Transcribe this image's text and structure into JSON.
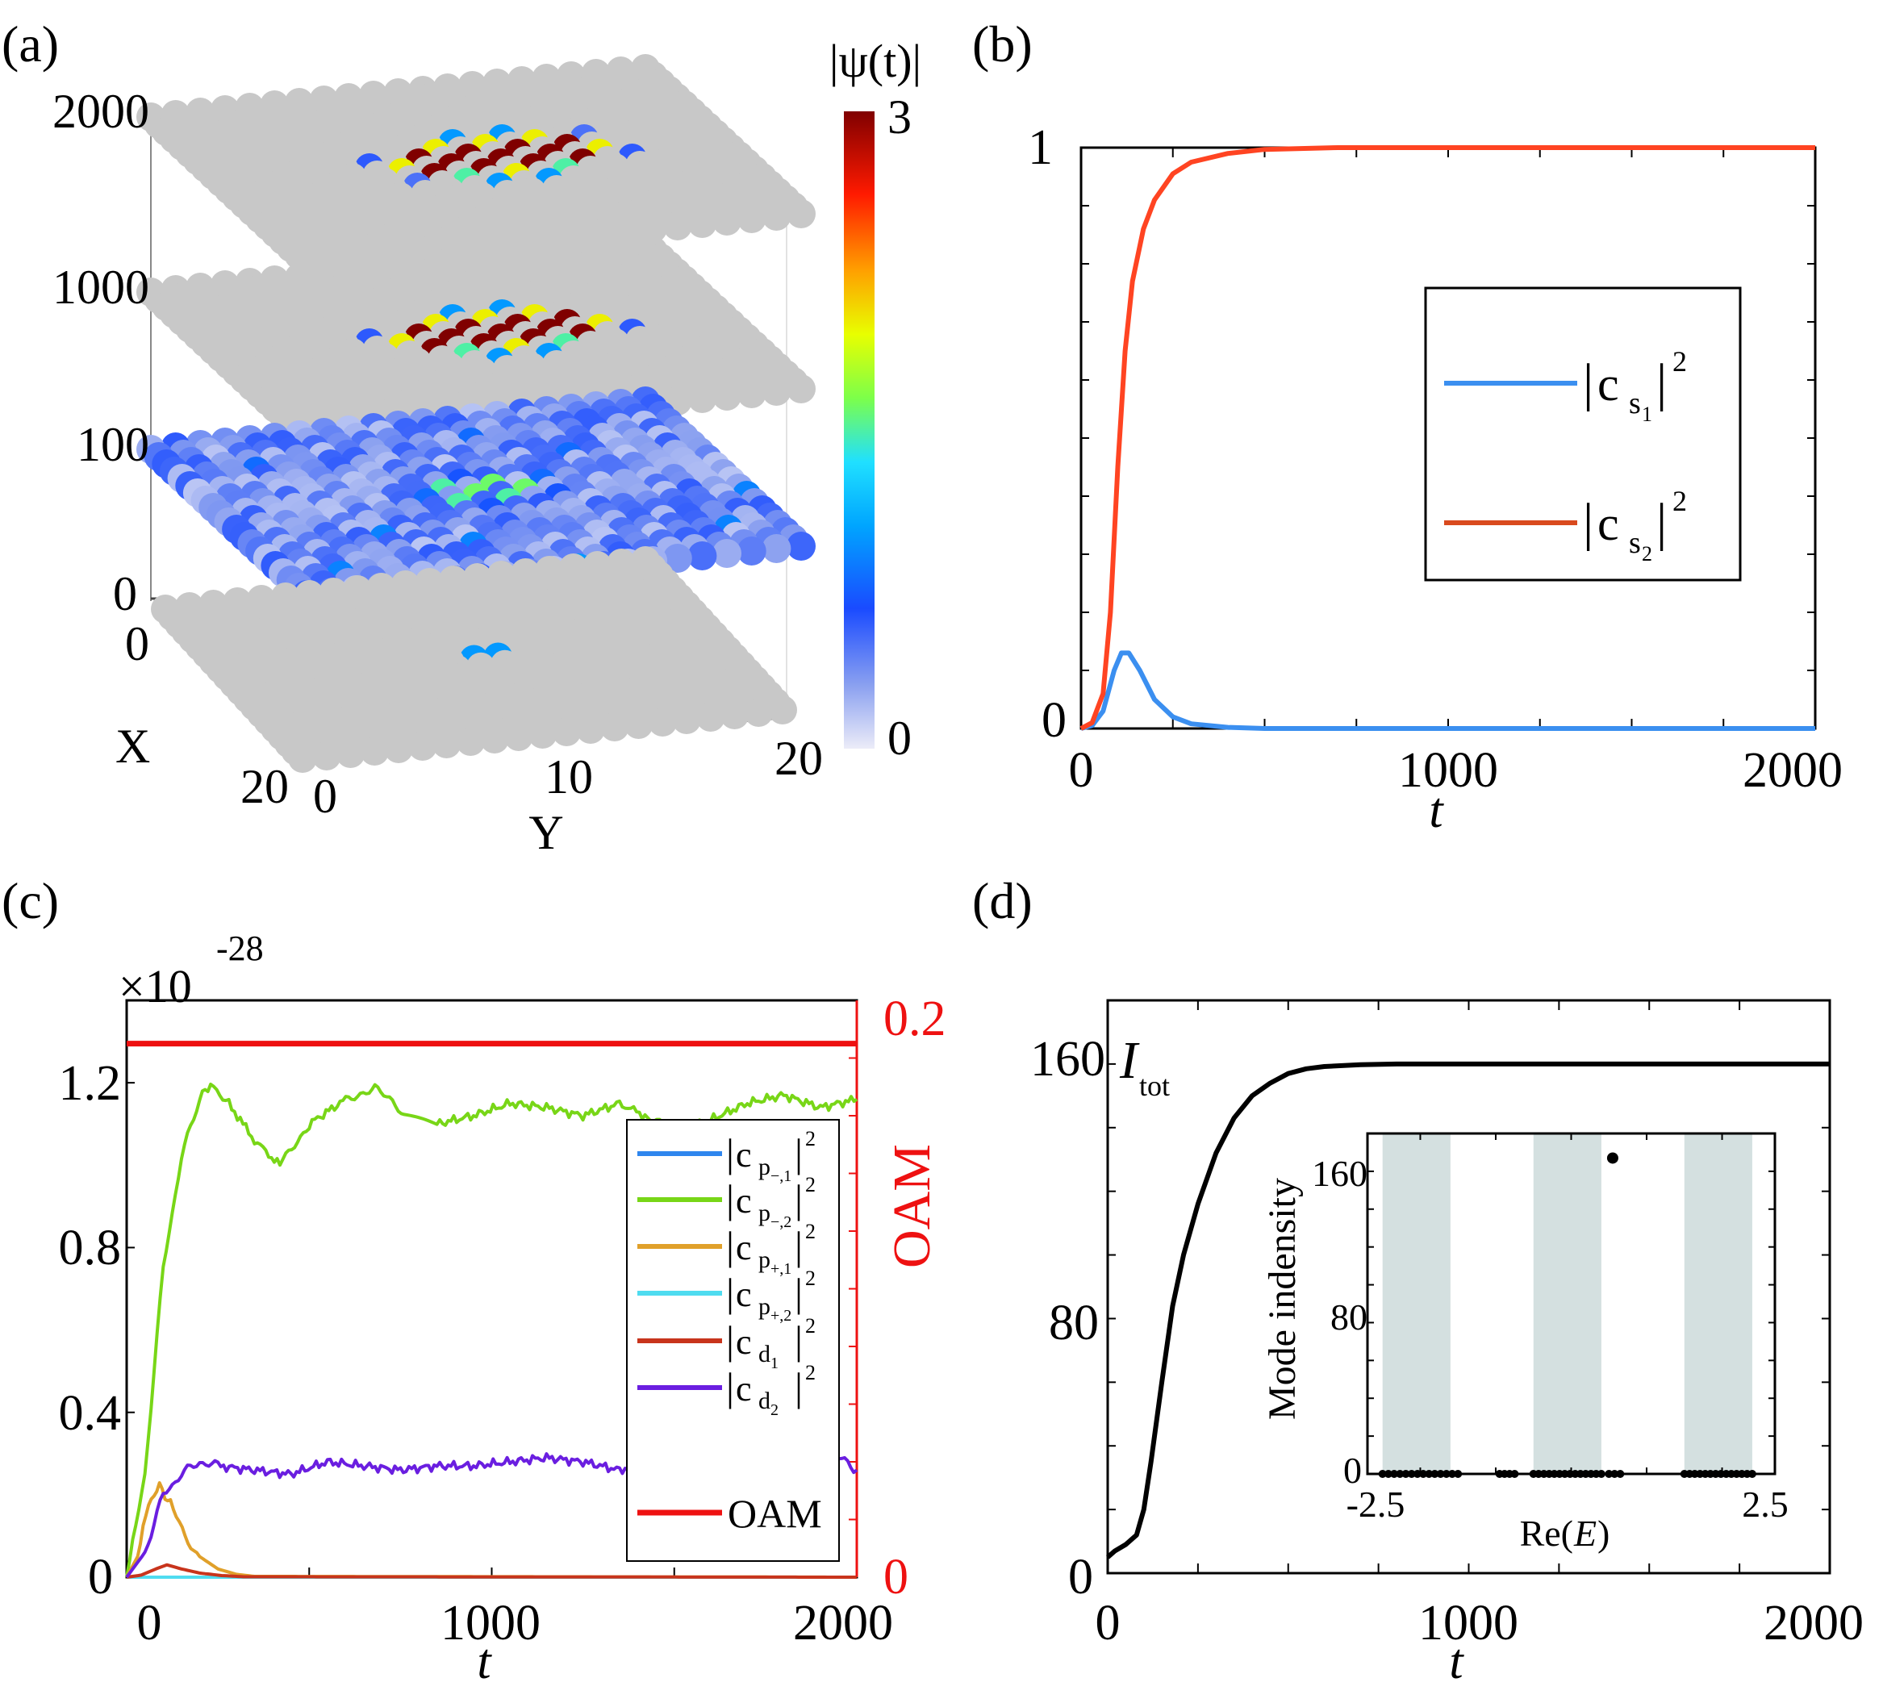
{
  "panels": {
    "a": {
      "label": "(a)"
    },
    "b": {
      "label": "(b)"
    },
    "c": {
      "label": "(c)"
    },
    "d": {
      "label": "(d)"
    }
  },
  "chart_data": [
    {
      "id": "a",
      "type": "other",
      "title": "",
      "layer_ticks": [
        "2000",
        "1000",
        "100",
        "0"
      ],
      "xlabel": "X",
      "ylabel": "Y",
      "x_ticks": [
        "0",
        "20"
      ],
      "y_ticks": [
        "0",
        "10",
        "20"
      ],
      "colorbar": {
        "label": "|ψ(t)|",
        "max": "3",
        "min": "0",
        "colormap": "jet"
      },
      "lattice": {
        "rows": 21,
        "cols": 21,
        "background_color": "#c8c8c8"
      },
      "layers": [
        {
          "t": 2000,
          "excited": [
            [
              8,
              9,
              2
            ],
            [
              8,
              11,
              2
            ],
            [
              8,
              13,
              2
            ],
            [
              9,
              8,
              3
            ],
            [
              9,
              10,
              3
            ],
            [
              9,
              12,
              3
            ],
            [
              9,
              14,
              3
            ],
            [
              10,
              7,
              2
            ],
            [
              10,
              9,
              3
            ],
            [
              10,
              11,
              3
            ],
            [
              10,
              13,
              3
            ],
            [
              10,
              15,
              2
            ],
            [
              11,
              8,
              3
            ],
            [
              11,
              10,
              3
            ],
            [
              11,
              12,
              3
            ],
            [
              11,
              14,
              3
            ],
            [
              12,
              9,
              1.5
            ],
            [
              12,
              11,
              2
            ],
            [
              12,
              13,
              1.5
            ],
            [
              7,
              10,
              1
            ],
            [
              7,
              12,
              1
            ],
            [
              13,
              10,
              1
            ],
            [
              13,
              12,
              1
            ],
            [
              9,
              6,
              0.6
            ],
            [
              11,
              16,
              0.6
            ],
            [
              12,
              7,
              0.5
            ],
            [
              8,
              15,
              0.5
            ]
          ]
        },
        {
          "t": 1000,
          "excited": [
            [
              8,
              9,
              2
            ],
            [
              8,
              11,
              2
            ],
            [
              8,
              13,
              2
            ],
            [
              9,
              8,
              3
            ],
            [
              9,
              10,
              3
            ],
            [
              9,
              12,
              3
            ],
            [
              9,
              14,
              3
            ],
            [
              10,
              7,
              2
            ],
            [
              10,
              9,
              3
            ],
            [
              10,
              11,
              3
            ],
            [
              10,
              13,
              3
            ],
            [
              10,
              15,
              2
            ],
            [
              11,
              8,
              3
            ],
            [
              11,
              10,
              3
            ],
            [
              11,
              12,
              3
            ],
            [
              11,
              14,
              3
            ],
            [
              12,
              9,
              1.5
            ],
            [
              12,
              11,
              2
            ],
            [
              12,
              13,
              1.5
            ],
            [
              7,
              10,
              1
            ],
            [
              7,
              12,
              1
            ],
            [
              13,
              10,
              1
            ],
            [
              13,
              12,
              1
            ],
            [
              9,
              6,
              0.6
            ],
            [
              11,
              16,
              0.6
            ]
          ]
        },
        {
          "t": 100,
          "excited": [
            [
              9,
              9,
              1.5
            ],
            [
              9,
              11,
              1.6
            ],
            [
              10,
              10,
              1.6
            ],
            [
              10,
              12,
              1.6
            ],
            [
              11,
              9,
              1.5
            ],
            [
              11,
              11,
              1.5
            ],
            [
              10,
              8,
              0.8
            ],
            [
              9,
              13,
              0.8
            ],
            [
              11,
              13,
              0.7
            ],
            [
              8,
              10,
              0.7
            ],
            [
              12,
              10,
              0.7
            ],
            [
              14,
              5,
              0.9
            ],
            [
              16,
              8,
              0.9
            ],
            [
              20,
              11,
              1
            ],
            [
              17,
              18,
              0.9
            ],
            [
              13,
              20,
              0.9
            ],
            [
              6,
              15,
              0.8
            ],
            [
              3,
              12,
              0.8
            ],
            [
              4,
              3,
              0.8
            ],
            [
              18,
              2,
              0.9
            ]
          ]
        },
        {
          "t": 0,
          "excited": [
            [
              10,
              10,
              1
            ],
            [
              10,
              11,
              1
            ]
          ]
        }
      ]
    },
    {
      "id": "b",
      "type": "line",
      "title": "",
      "xlabel": "t",
      "ylabel": "",
      "xlim": [
        0,
        2000
      ],
      "ylim": [
        0,
        1
      ],
      "x_ticks": [
        0,
        1000,
        2000
      ],
      "y_ticks": [
        0,
        1
      ],
      "legend": {
        "position": "center-right",
        "entries": [
          "|cs1|²",
          "|cs2|²"
        ]
      },
      "series": [
        {
          "name": "|cs1|²",
          "color": "#3b8ff0",
          "x": [
            0,
            30,
            60,
            90,
            110,
            130,
            160,
            200,
            250,
            300,
            400,
            500,
            700,
            1000,
            1500,
            2000
          ],
          "y": [
            0,
            0.005,
            0.03,
            0.1,
            0.13,
            0.13,
            0.1,
            0.05,
            0.02,
            0.008,
            0.002,
            0,
            0,
            0,
            0,
            0
          ]
        },
        {
          "name": "|cs2|²",
          "color": "#ff4422",
          "x": [
            0,
            30,
            60,
            80,
            100,
            120,
            140,
            170,
            200,
            250,
            300,
            400,
            500,
            700,
            1000,
            1500,
            2000
          ],
          "y": [
            0,
            0.01,
            0.06,
            0.2,
            0.45,
            0.65,
            0.77,
            0.86,
            0.91,
            0.955,
            0.975,
            0.99,
            0.997,
            1,
            1,
            1,
            1
          ]
        }
      ]
    },
    {
      "id": "c",
      "type": "line",
      "title": "",
      "xlabel": "t",
      "ylabel": "",
      "y2label": "OAM",
      "exponent_label": "×10",
      "exponent_value": "-28",
      "xlim": [
        0,
        2000
      ],
      "ylim": [
        0,
        1.4
      ],
      "y2lim": [
        0,
        0.2
      ],
      "x_ticks": [
        0,
        1000,
        2000
      ],
      "y_ticks": [
        0,
        0.4,
        0.8,
        1.2
      ],
      "y_tick_labels": [
        "0",
        "0.4",
        "0.8",
        "1.2"
      ],
      "y2_ticks": [
        0,
        0.2
      ],
      "legend": {
        "position": "right",
        "entries": [
          "|cp-,1|²",
          "|cp-,2|²",
          "|cp+,1|²",
          "|cp+,2|²",
          "|cd1|²",
          "|cd2|²",
          "OAM"
        ]
      },
      "series": [
        {
          "name": "|cp-,1|²",
          "color": "#2f86ee",
          "x": [
            0,
            2000
          ],
          "y": [
            0,
            0
          ]
        },
        {
          "name": "|cp-,2|²",
          "color": "#78d617",
          "x": [
            0,
            50,
            100,
            150,
            200,
            230,
            280,
            350,
            420,
            500,
            600,
            680,
            760,
            850,
            950,
            1050,
            1150,
            1250,
            1350,
            1420,
            1500,
            1600,
            1700,
            1800,
            1900,
            2000
          ],
          "y": [
            0,
            0.25,
            0.75,
            1.02,
            1.16,
            1.2,
            1.15,
            1.06,
            1.0,
            1.1,
            1.16,
            1.19,
            1.12,
            1.1,
            1.12,
            1.15,
            1.14,
            1.12,
            1.15,
            1.12,
            1.08,
            1.11,
            1.15,
            1.17,
            1.14,
            1.16
          ]
        },
        {
          "name": "|cp+,1|²",
          "color": "#e0a02a",
          "x": [
            0,
            30,
            60,
            90,
            120,
            160,
            200,
            250,
            300,
            350,
            2000
          ],
          "y": [
            0,
            0.05,
            0.18,
            0.22,
            0.18,
            0.1,
            0.05,
            0.02,
            0.007,
            0.002,
            0
          ]
        },
        {
          "name": "|cp+,2|²",
          "color": "#4fdcf0",
          "x": [
            0,
            2000
          ],
          "y": [
            0,
            0
          ]
        },
        {
          "name": "|cd1|²",
          "color": "#c8341c",
          "x": [
            0,
            40,
            80,
            110,
            150,
            200,
            260,
            320,
            2000
          ],
          "y": [
            0,
            0.005,
            0.02,
            0.03,
            0.02,
            0.01,
            0.004,
            0.001,
            0
          ]
        },
        {
          "name": "|cd2|²",
          "color": "#6a1ee0",
          "x": [
            0,
            50,
            100,
            150,
            200,
            250,
            350,
            450,
            550,
            650,
            750,
            850,
            950,
            1050,
            1150,
            1250,
            1350,
            1450,
            1550,
            1650,
            1750,
            1850,
            1900,
            1950,
            2000
          ],
          "y": [
            0,
            0.06,
            0.2,
            0.25,
            0.28,
            0.27,
            0.26,
            0.25,
            0.28,
            0.27,
            0.26,
            0.27,
            0.27,
            0.28,
            0.29,
            0.28,
            0.26,
            0.28,
            0.28,
            0.28,
            0.27,
            0.22,
            0.25,
            0.29,
            0.26
          ]
        },
        {
          "name": "OAM",
          "color": "#ee1111",
          "axis": "right",
          "x": [
            0,
            2000
          ],
          "y": [
            0.185,
            0.185
          ]
        }
      ]
    },
    {
      "id": "d",
      "type": "line",
      "title": "",
      "xlabel": "t",
      "ylabel": "",
      "series_label": "I",
      "series_label_sub": "tot",
      "xlim": [
        0,
        2000
      ],
      "ylim": [
        0,
        180
      ],
      "x_ticks": [
        0,
        1000,
        2000
      ],
      "y_ticks": [
        0,
        80,
        160
      ],
      "series": [
        {
          "name": "Itot",
          "color": "#000000",
          "x": [
            0,
            20,
            50,
            80,
            100,
            120,
            150,
            180,
            210,
            250,
            300,
            350,
            400,
            450,
            500,
            550,
            600,
            700,
            800,
            1000,
            1500,
            2000
          ],
          "y": [
            5,
            7,
            9,
            12,
            20,
            35,
            60,
            84,
            100,
            116,
            132,
            143,
            150,
            154,
            157,
            158.5,
            159.2,
            159.8,
            160,
            160,
            160,
            160
          ]
        }
      ],
      "inset": {
        "type": "scatter",
        "xlabel": "Re(E)",
        "ylabel": "Mode indensity",
        "xlim": [
          -2.7,
          2.7
        ],
        "ylim": [
          0,
          180
        ],
        "x_ticks": [
          -2.5,
          2.5
        ],
        "x_tick_labels": [
          "-2.5",
          "2.5"
        ],
        "y_ticks": [
          0,
          80,
          160
        ],
        "shaded_bands": [
          [
            -2.5,
            -1.6
          ],
          [
            -0.5,
            0.4
          ],
          [
            1.5,
            2.4
          ]
        ],
        "point_groups": [
          {
            "from": -2.5,
            "to": -1.5,
            "count": 14,
            "y": 0
          },
          {
            "from": -0.5,
            "to": 0.4,
            "count": 14,
            "y": 0
          },
          {
            "from": 1.5,
            "to": 2.4,
            "count": 14,
            "y": 0
          },
          {
            "from": -0.95,
            "to": -0.75,
            "count": 4,
            "y": 0
          },
          {
            "from": 0.5,
            "to": 0.65,
            "count": 3,
            "y": 0
          }
        ],
        "highlight_point": {
          "x": 0.55,
          "y": 167
        }
      }
    }
  ]
}
